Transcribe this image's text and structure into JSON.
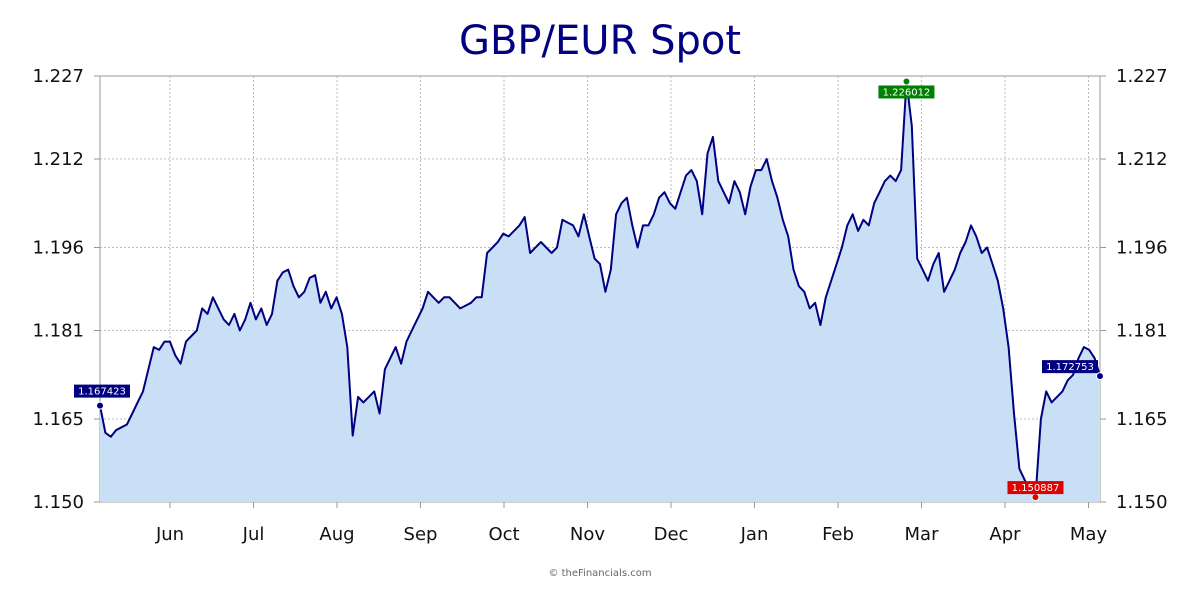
{
  "chart_data": {
    "type": "area",
    "title": "GBP/EUR Spot",
    "credit": "© theFinancials.com",
    "ylim": [
      1.15,
      1.227
    ],
    "y_ticks": [
      "1.150",
      "1.165",
      "1.181",
      "1.196",
      "1.212",
      "1.227"
    ],
    "x_ticks": [
      "Jun",
      "Jul",
      "Aug",
      "Sep",
      "Oct",
      "Nov",
      "Dec",
      "Jan",
      "Feb",
      "Mar",
      "Apr",
      "May"
    ],
    "grid": true,
    "colors": {
      "line": "#000080",
      "fill": "#c8dff5",
      "grid": "#bbbbbb",
      "start_end_label": "#000080",
      "high_label": "#008000",
      "low_label": "#e00000"
    },
    "markers": {
      "start": {
        "label": "1.167423",
        "value": 1.167423
      },
      "high": {
        "label": "1.226012",
        "value": 1.226012
      },
      "low": {
        "label": "1.150887",
        "value": 1.150887
      },
      "end": {
        "label": "1.172753",
        "value": 1.172753
      }
    },
    "series": [
      {
        "values": [
          1.1674,
          1.1625,
          1.1618,
          1.163,
          1.1635,
          1.164,
          1.166,
          1.168,
          1.17,
          1.174,
          1.178,
          1.1775,
          1.179,
          1.179,
          1.1765,
          1.175,
          1.179,
          1.18,
          1.181,
          1.185,
          1.184,
          1.187,
          1.185,
          1.183,
          1.182,
          1.184,
          1.181,
          1.183,
          1.186,
          1.183,
          1.185,
          1.182,
          1.184,
          1.19,
          1.1915,
          1.192,
          1.189,
          1.187,
          1.188,
          1.1905,
          1.191,
          1.186,
          1.188,
          1.185,
          1.187,
          1.184,
          1.178,
          1.162,
          1.169,
          1.168,
          1.169,
          1.17,
          1.166,
          1.174,
          1.176,
          1.178,
          1.175,
          1.179,
          1.181,
          1.183,
          1.185,
          1.188,
          1.187,
          1.186,
          1.187,
          1.187,
          1.186,
          1.185,
          1.1855,
          1.186,
          1.187,
          1.187,
          1.195,
          1.196,
          1.197,
          1.1985,
          1.198,
          1.199,
          1.2,
          1.2015,
          1.195,
          1.196,
          1.197,
          1.196,
          1.195,
          1.196,
          1.201,
          1.2005,
          1.2,
          1.198,
          1.202,
          1.198,
          1.194,
          1.193,
          1.188,
          1.192,
          1.202,
          1.204,
          1.205,
          1.2,
          1.196,
          1.2,
          1.2,
          1.202,
          1.205,
          1.206,
          1.204,
          1.203,
          1.206,
          1.209,
          1.21,
          1.208,
          1.202,
          1.213,
          1.216,
          1.208,
          1.206,
          1.204,
          1.208,
          1.206,
          1.202,
          1.207,
          1.21,
          1.21,
          1.212,
          1.208,
          1.205,
          1.201,
          1.198,
          1.192,
          1.189,
          1.188,
          1.185,
          1.186,
          1.182,
          1.187,
          1.19,
          1.193,
          1.196,
          1.2,
          1.202,
          1.199,
          1.201,
          1.2,
          1.204,
          1.206,
          1.208,
          1.209,
          1.208,
          1.21,
          1.226,
          1.218,
          1.194,
          1.192,
          1.19,
          1.193,
          1.195,
          1.188,
          1.19,
          1.192,
          1.195,
          1.197,
          1.2,
          1.198,
          1.195,
          1.196,
          1.193,
          1.19,
          1.185,
          1.178,
          1.166,
          1.156,
          1.154,
          1.152,
          1.1509,
          1.165,
          1.17,
          1.168,
          1.169,
          1.17,
          1.172,
          1.173,
          1.176,
          1.178,
          1.1775,
          1.176,
          1.1728
        ]
      }
    ]
  }
}
